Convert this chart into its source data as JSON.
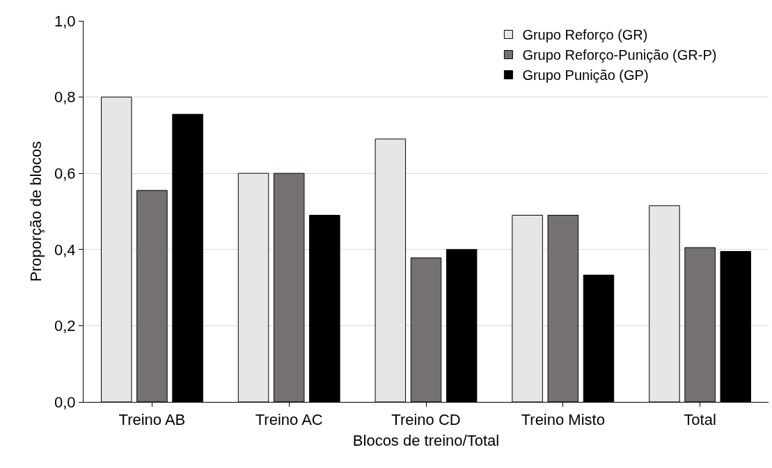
{
  "chart_data": {
    "type": "bar",
    "xlabel": "Blocos de treino/Total",
    "ylabel": "Proporção de blocos",
    "categories": [
      "Treino AB",
      "Treino AC",
      "Treino CD",
      "Treino Misto",
      "Total"
    ],
    "series": [
      {
        "name": "Grupo Reforço (GR)",
        "color": "#e7e6e6",
        "values": [
          0.8,
          0.6,
          0.69,
          0.49,
          0.515
        ]
      },
      {
        "name": "Grupo Reforço-Punição (GR-P)",
        "color": "#767171",
        "values": [
          0.555,
          0.6,
          0.378,
          0.49,
          0.405
        ]
      },
      {
        "name": "Grupo Punição (GP)",
        "color": "#000000",
        "values": [
          0.755,
          0.49,
          0.4,
          0.333,
          0.395
        ]
      }
    ],
    "ylim": [
      0,
      1
    ],
    "yticks": [
      {
        "value": 0,
        "label": "0,0"
      },
      {
        "value": 0.2,
        "label": "0,2"
      },
      {
        "value": 0.4,
        "label": "0,4"
      },
      {
        "value": 0.6,
        "label": "0,6"
      },
      {
        "value": 0.8,
        "label": "0,8"
      },
      {
        "value": 1,
        "label": "1,0"
      }
    ],
    "grid": "y",
    "legend": "top right"
  }
}
